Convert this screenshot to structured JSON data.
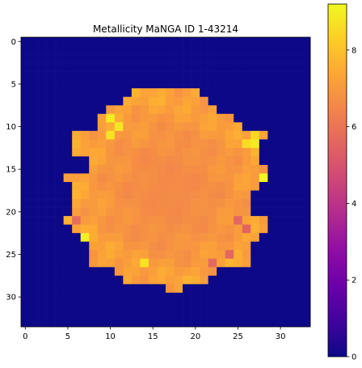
{
  "chart_data": {
    "type": "heatmap",
    "title": "Metallicity MaNGA ID 1-43214",
    "xlabel": "",
    "ylabel": "",
    "xlim": [
      -0.5,
      33.5
    ],
    "ylim": [
      33.5,
      -0.5
    ],
    "x_ticks": [
      "0",
      "5",
      "10",
      "15",
      "20",
      "25",
      "30"
    ],
    "x_tick_values": [
      0,
      5,
      10,
      15,
      20,
      25,
      30
    ],
    "y_ticks": [
      "0",
      "5",
      "10",
      "15",
      "20",
      "25",
      "30"
    ],
    "y_tick_values": [
      0,
      5,
      10,
      15,
      20,
      25,
      30
    ],
    "colormap": "plasma",
    "colorbar": {
      "range": [
        0,
        9.2
      ],
      "ticks": [
        "0",
        "2",
        "4",
        "6",
        "8"
      ],
      "tick_values": [
        0,
        2,
        4,
        6,
        8
      ]
    },
    "grid": false,
    "background_value": 0,
    "galaxy_region": {
      "row_extents": [
        {
          "row": 6,
          "x_start": 13,
          "x_end": 20
        },
        {
          "row": 7,
          "x_start": 12,
          "x_end": 21
        },
        {
          "row": 8,
          "x_start": 10,
          "x_end": 22
        },
        {
          "row": 9,
          "x_start": 9,
          "x_end": 24
        },
        {
          "row": 10,
          "x_start": 9,
          "x_end": 25
        },
        {
          "row": 11,
          "x_start": 6,
          "x_end": 28
        },
        {
          "row": 12,
          "x_start": 6,
          "x_end": 27
        },
        {
          "row": 13,
          "x_start": 6,
          "x_end": 27
        },
        {
          "row": 14,
          "x_start": 8,
          "x_end": 27
        },
        {
          "row": 15,
          "x_start": 8,
          "x_end": 28
        },
        {
          "row": 16,
          "x_start": 5,
          "x_end": 28
        },
        {
          "row": 17,
          "x_start": 6,
          "x_end": 27
        },
        {
          "row": 18,
          "x_start": 6,
          "x_end": 26
        },
        {
          "row": 19,
          "x_start": 6,
          "x_end": 26
        },
        {
          "row": 20,
          "x_start": 6,
          "x_end": 26
        },
        {
          "row": 21,
          "x_start": 5,
          "x_end": 28
        },
        {
          "row": 22,
          "x_start": 6,
          "x_end": 28
        },
        {
          "row": 23,
          "x_start": 7,
          "x_end": 27
        },
        {
          "row": 24,
          "x_start": 8,
          "x_end": 26
        },
        {
          "row": 25,
          "x_start": 8,
          "x_end": 26
        },
        {
          "row": 26,
          "x_start": 8,
          "x_end": 26
        },
        {
          "row": 27,
          "x_start": 11,
          "x_end": 22
        },
        {
          "row": 28,
          "x_start": 12,
          "x_end": 21
        },
        {
          "row": 29,
          "x_start": 17,
          "x_end": 18
        }
      ],
      "typical_value": 6.6,
      "edge_values_range": [
        5.5,
        8.5
      ],
      "hot_pixels": [
        {
          "x": 10,
          "y": 9,
          "value": 8.9
        },
        {
          "x": 10,
          "y": 11,
          "value": 8.7
        },
        {
          "x": 11,
          "y": 10,
          "value": 8.8
        },
        {
          "x": 26,
          "y": 12,
          "value": 8.6
        },
        {
          "x": 27,
          "y": 12,
          "value": 8.9
        },
        {
          "x": 27,
          "y": 11,
          "value": 8.5
        },
        {
          "x": 28,
          "y": 16,
          "value": 9.2
        },
        {
          "x": 7,
          "y": 23,
          "value": 9.0
        },
        {
          "x": 14,
          "y": 26,
          "value": 8.7
        }
      ],
      "cool_pixels": [
        {
          "x": 25,
          "y": 21,
          "value": 5.6
        },
        {
          "x": 26,
          "y": 22,
          "value": 5.5
        },
        {
          "x": 24,
          "y": 25,
          "value": 5.6
        },
        {
          "x": 22,
          "y": 26,
          "value": 5.7
        },
        {
          "x": 6,
          "y": 21,
          "value": 5.8
        }
      ]
    }
  }
}
